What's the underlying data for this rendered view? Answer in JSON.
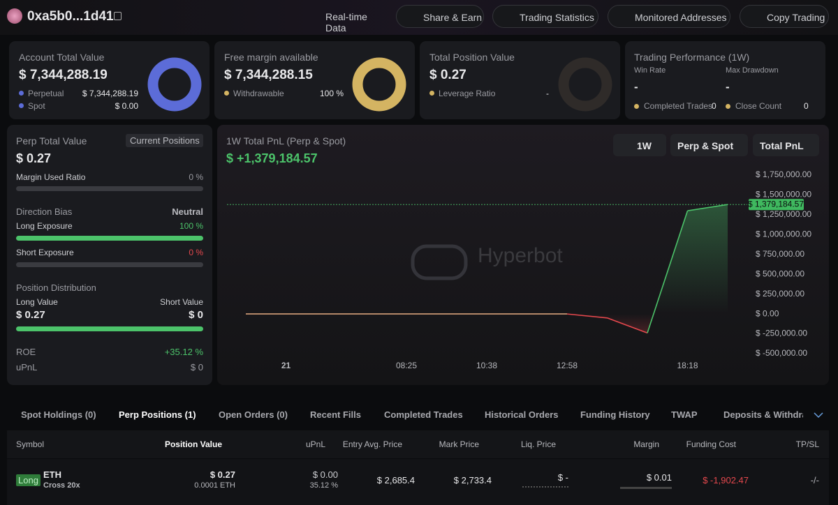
{
  "header": {
    "address": "0xa5b0...1d41",
    "nav": [
      "Real-time Data",
      "Share & Earn",
      "Trading Statistics",
      "Monitored Addresses",
      "Copy Trading"
    ]
  },
  "cards": [
    {
      "title": "Account Total Value",
      "value": "$ 7,344,288.19",
      "rows": [
        [
          "Perpetual",
          "$ 7,344,288.19"
        ],
        [
          "Spot",
          "$ 0.00"
        ]
      ]
    },
    {
      "title": "Free margin available",
      "value": "$ 7,344,288.15",
      "rows": [
        [
          "Withdrawable",
          "100 %"
        ]
      ]
    },
    {
      "title": "Total Position Value",
      "value": "$ 0.27",
      "rows": [
        [
          "Leverage Ratio",
          "-"
        ]
      ]
    }
  ],
  "performance": {
    "title": "Trading Performance (1W)",
    "win_rate_label": "Win Rate",
    "win_rate": "-",
    "drawdown_label": "Max Drawdown",
    "drawdown": "-",
    "completed_label": "Completed Trades",
    "completed": "0",
    "close_label": "Close Count",
    "close": "0"
  },
  "perp": {
    "title": "Perp Total Value",
    "button": "Current Positions",
    "value": "$ 0.27",
    "margin_label": "Margin Used Ratio",
    "margin": "0 %",
    "bias_label": "Direction Bias",
    "bias": "Neutral",
    "long_label": "Long Exposure",
    "long": "100 %",
    "short_label": "Short Exposure",
    "short": "0 %",
    "dist_label": "Position Distribution",
    "long_value_label": "Long Value",
    "long_value": "$ 0.27",
    "short_value_label": "Short Value",
    "short_value": "$ 0",
    "roe_label": "ROE",
    "roe": "+35.12 %",
    "upnl_label": "uPnL",
    "upnl": "$ 0"
  },
  "chart": {
    "type": "line",
    "title": "1W Total PnL (Perp & Spot)",
    "total": "$ +1,379,184.57",
    "filters": [
      "1W",
      "Perp & Spot",
      "Total PnL"
    ],
    "watermark": "Hyperbot",
    "categories": [
      null,
      "21",
      null,
      null,
      "08:25",
      null,
      "10:38",
      null,
      "12:58",
      null,
      null,
      "18:18",
      null
    ],
    "values": [
      0,
      0,
      0,
      0,
      0,
      0,
      0,
      0,
      0,
      -50000,
      -240000,
      1300000,
      1379184.57
    ],
    "value_labels": [
      null,
      null,
      null,
      null,
      null,
      null,
      null,
      null,
      null,
      null,
      null,
      null,
      "$ 1,379,184.57"
    ],
    "ylim": [
      -500000,
      1750000
    ],
    "yticks": [
      {
        "value": 1750000,
        "label": "$ 1,750,000.00"
      },
      {
        "value": 1500000,
        "label": "$ 1,500,000.00"
      },
      {
        "value": 1250000,
        "label": "$ 1,250,000.00"
      },
      {
        "value": 1000000,
        "label": "$ 1,000,000.00"
      },
      {
        "value": 750000,
        "label": "$ 750,000.00"
      },
      {
        "value": 500000,
        "label": "$ 500,000.00"
      },
      {
        "value": 250000,
        "label": "$ 250,000.00"
      },
      {
        "value": 0,
        "label": "$ 0.00"
      },
      {
        "value": -250000,
        "label": "$ -250,000.00"
      },
      {
        "value": -500000,
        "label": "$ -500,000.00"
      }
    ],
    "colors": {
      "flat": "#d9a27a",
      "up": "#4cc36a",
      "down": "#e5484d"
    }
  },
  "tabs": [
    "Spot Holdings (0)",
    "Perp Positions (1)",
    "Open Orders (0)",
    "Recent Fills",
    "Completed Trades",
    "Historical Orders",
    "Funding History",
    "TWAP",
    "Deposits & Withdrav"
  ],
  "table": {
    "headers": [
      "Symbol",
      "Position Value",
      "uPnL",
      "Entry Avg. Price",
      "Mark Price",
      "Liq. Price",
      "Margin",
      "Funding Cost",
      "TP/SL"
    ],
    "rows": [
      {
        "side": "Long",
        "symbol": "ETH",
        "mode": "Cross 20x",
        "value": "$ 0.27",
        "size": "0.0001 ETH",
        "upnl": "$ 0.00",
        "upnl_pct": "35.12 %",
        "entry": "$ 2,685.4",
        "mark": "$ 2,733.4",
        "liq": "$ -",
        "margin": "$ 0.01",
        "funding": "$ -1,902.47",
        "tpsl": "-/-"
      }
    ]
  }
}
